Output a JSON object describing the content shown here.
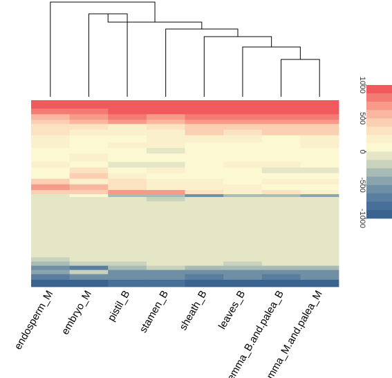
{
  "chart_data": {
    "type": "heatmap",
    "title": "",
    "xlabel": "",
    "ylabel": "",
    "columns": [
      "endosperm_M",
      "embryo_M",
      "pistil_B",
      "stamen_B",
      "sheath_B",
      "leaves_B",
      "lemma_B.and.palea_B",
      "lemma_M.and.palea_M"
    ],
    "dendrogram": {
      "merges": [
        {
          "left": "embryo_M",
          "right": "pistil_B"
        },
        {
          "left": "lemma_B.and.palea_B",
          "right": "lemma_M.and.palea_M"
        },
        {
          "left": "leaves_B",
          "right": "lemma_B.and.palea_B + lemma_M.and.palea_M"
        },
        {
          "left": "sheath_B",
          "right": "leaves_B + lemma pair"
        },
        {
          "left": "stamen_B",
          "right": "sheath_B + leaves_B + lemma pair"
        },
        {
          "left": "embryo_M + pistil_B",
          "right": "stamen_B + ..."
        },
        {
          "left": "endosperm_M",
          "right": "all others"
        }
      ]
    },
    "color_scale": {
      "range": [
        -1000,
        1000
      ],
      "ticks": [
        "1000",
        "500",
        "0",
        "-500",
        "-1000"
      ],
      "colors": [
        "#f05a5e",
        "#f47b74",
        "#f79a8a",
        "#f9b79f",
        "#fbcfb1",
        "#fbe2c1",
        "#faf1cc",
        "#fbf8d2",
        "#e4e6c6",
        "#c8d2bd",
        "#a8bbb4",
        "#8aa4ad",
        "#6f8fa5",
        "#5a7e9e",
        "#476f97",
        "#3a6390"
      ]
    },
    "rows": [
      {
        "weight": 6,
        "values": [
          900,
          950,
          950,
          950,
          950,
          950,
          950,
          950
        ]
      },
      {
        "weight": 4,
        "values": [
          800,
          850,
          900,
          880,
          900,
          900,
          900,
          900
        ]
      },
      {
        "weight": 4,
        "values": [
          600,
          750,
          800,
          700,
          850,
          850,
          800,
          850
        ]
      },
      {
        "weight": 3,
        "values": [
          500,
          600,
          650,
          600,
          700,
          700,
          650,
          750
        ]
      },
      {
        "weight": 4,
        "values": [
          300,
          350,
          250,
          300,
          500,
          500,
          450,
          500
        ]
      },
      {
        "weight": 4,
        "values": [
          350,
          200,
          150,
          250,
          450,
          350,
          400,
          450
        ]
      },
      {
        "weight": 5,
        "values": [
          150,
          50,
          100,
          150,
          250,
          150,
          100,
          200
        ]
      },
      {
        "weight": 4,
        "values": [
          250,
          100,
          150,
          200,
          100,
          100,
          100,
          150
        ]
      },
      {
        "weight": 4,
        "values": [
          50,
          100,
          50,
          0,
          50,
          100,
          50,
          50
        ]
      },
      {
        "weight": 6,
        "values": [
          80,
          150,
          120,
          80,
          50,
          100,
          80,
          100
        ]
      },
      {
        "weight": 4,
        "values": [
          200,
          50,
          0,
          0,
          100,
          250,
          150,
          50
        ]
      },
      {
        "weight": 4,
        "values": [
          30,
          300,
          100,
          150,
          50,
          50,
          0,
          0
        ]
      },
      {
        "weight": 4,
        "values": [
          100,
          400,
          200,
          50,
          50,
          100,
          100,
          50
        ]
      },
      {
        "weight": 4,
        "values": [
          500,
          250,
          300,
          250,
          200,
          100,
          200,
          150
        ]
      },
      {
        "weight": 4,
        "values": [
          750,
          600,
          350,
          200,
          150,
          150,
          100,
          100
        ]
      },
      {
        "weight": 3,
        "values": [
          400,
          500,
          700,
          650,
          300,
          250,
          300,
          200
        ]
      },
      {
        "weight": 2,
        "values": [
          0,
          100,
          -300,
          -300,
          -600,
          -300,
          -300,
          -400
        ]
      },
      {
        "weight": 3,
        "values": [
          0,
          0,
          0,
          -150,
          0,
          0,
          0,
          0
        ]
      },
      {
        "weight": 40,
        "values": [
          0,
          0,
          0,
          0,
          0,
          0,
          0,
          0
        ]
      },
      {
        "weight": 3,
        "values": [
          -150,
          -100,
          -50,
          -100,
          -50,
          -50,
          -50,
          -50
        ]
      },
      {
        "weight": 3,
        "values": [
          -250,
          -150,
          -200,
          -100,
          -50,
          -150,
          -50,
          -50
        ]
      },
      {
        "weight": 3,
        "values": [
          -500,
          -700,
          -300,
          -200,
          -300,
          -300,
          -300,
          -250
        ]
      },
      {
        "weight": 3,
        "values": [
          -400,
          -200,
          -500,
          -600,
          -500,
          -500,
          -600,
          -500
        ]
      },
      {
        "weight": 4,
        "values": [
          -700,
          -600,
          -500,
          -600,
          -700,
          -600,
          -700,
          -600
        ]
      },
      {
        "weight": 5,
        "values": [
          -950,
          -900,
          -850,
          -850,
          -950,
          -900,
          -950,
          -900
        ]
      }
    ]
  }
}
